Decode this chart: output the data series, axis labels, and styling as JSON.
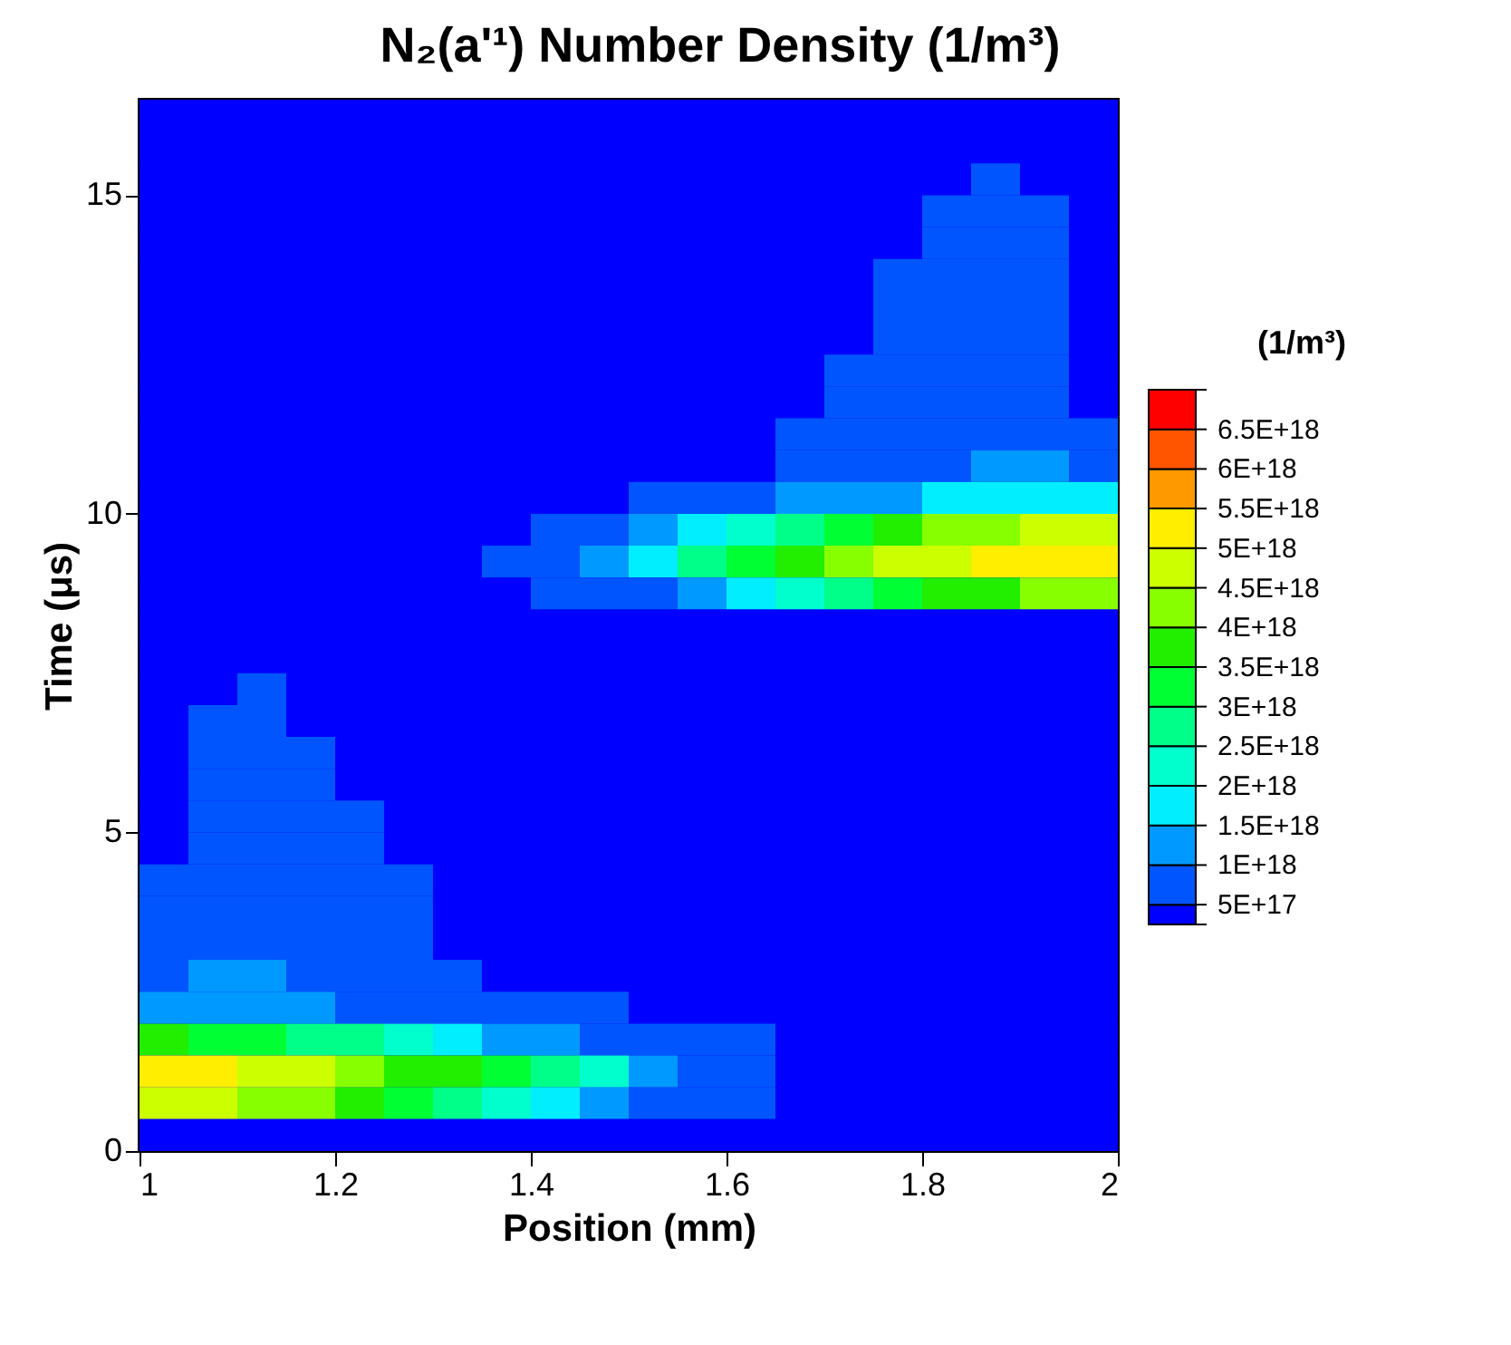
{
  "chart_data": {
    "type": "heatmap",
    "title": "N₂(a'¹) Number Density (1/m³)",
    "xlabel": "Position (mm)",
    "ylabel": "Time (μs)",
    "clabel": "(1/m³)",
    "x": [
      1.025,
      1.075,
      1.125,
      1.175,
      1.225,
      1.275,
      1.325,
      1.375,
      1.425,
      1.475,
      1.525,
      1.575,
      1.625,
      1.675,
      1.725,
      1.775,
      1.825,
      1.875,
      1.925,
      1.975
    ],
    "y": [
      16.25,
      15.75,
      15.25,
      14.75,
      14.25,
      13.75,
      13.25,
      12.75,
      12.25,
      11.75,
      11.25,
      10.75,
      10.25,
      9.75,
      9.25,
      8.75,
      8.25,
      7.75,
      7.25,
      6.75,
      6.25,
      5.75,
      5.25,
      4.75,
      4.25,
      3.75,
      3.25,
      2.75,
      2.25,
      1.75,
      1.25,
      0.75,
      0.25
    ],
    "cells": [
      [
        4e+17,
        4e+17,
        4e+17,
        4e+17,
        4e+17,
        4e+17,
        4e+17,
        4e+17,
        4e+17,
        4e+17,
        4e+17,
        4e+17,
        4e+17,
        4e+17,
        4e+17,
        4e+17,
        4e+17,
        4e+17,
        4e+17,
        4e+17
      ],
      [
        4e+17,
        4e+17,
        4e+17,
        4e+17,
        4e+17,
        4e+17,
        4e+17,
        4e+17,
        4e+17,
        4e+17,
        4e+17,
        4e+17,
        4e+17,
        4e+17,
        4e+17,
        4e+17,
        4e+17,
        4e+17,
        4e+17,
        4e+17
      ],
      [
        4e+17,
        4e+17,
        4e+17,
        4e+17,
        4e+17,
        4e+17,
        4e+17,
        4e+17,
        4e+17,
        4e+17,
        4e+17,
        4e+17,
        4e+17,
        4e+17,
        4e+17,
        4e+17,
        4e+17,
        7.5e+17,
        4e+17,
        4e+17
      ],
      [
        4e+17,
        4e+17,
        4e+17,
        4e+17,
        4e+17,
        4e+17,
        4e+17,
        4e+17,
        4e+17,
        4e+17,
        4e+17,
        4e+17,
        4e+17,
        4e+17,
        4e+17,
        4e+17,
        7.5e+17,
        7.5e+17,
        7.5e+17,
        4e+17
      ],
      [
        4e+17,
        4e+17,
        4e+17,
        4e+17,
        4e+17,
        4e+17,
        4e+17,
        4e+17,
        4e+17,
        4e+17,
        4e+17,
        4e+17,
        4e+17,
        4e+17,
        4e+17,
        4e+17,
        7.5e+17,
        7.5e+17,
        7.5e+17,
        4e+17
      ],
      [
        4e+17,
        4e+17,
        4e+17,
        4e+17,
        4e+17,
        4e+17,
        4e+17,
        4e+17,
        4e+17,
        4e+17,
        4e+17,
        4e+17,
        4e+17,
        4e+17,
        4e+17,
        7.5e+17,
        7.5e+17,
        7.5e+17,
        7.5e+17,
        4e+17
      ],
      [
        4e+17,
        4e+17,
        4e+17,
        4e+17,
        4e+17,
        4e+17,
        4e+17,
        4e+17,
        4e+17,
        4e+17,
        4e+17,
        4e+17,
        4e+17,
        4e+17,
        4e+17,
        7.5e+17,
        7.5e+17,
        7.5e+17,
        7.5e+17,
        4e+17
      ],
      [
        4e+17,
        4e+17,
        4e+17,
        4e+17,
        4e+17,
        4e+17,
        4e+17,
        4e+17,
        4e+17,
        4e+17,
        4e+17,
        4e+17,
        4e+17,
        4e+17,
        4e+17,
        7.5e+17,
        7.5e+17,
        7.5e+17,
        7.5e+17,
        4e+17
      ],
      [
        4e+17,
        4e+17,
        4e+17,
        4e+17,
        4e+17,
        4e+17,
        4e+17,
        4e+17,
        4e+17,
        4e+17,
        4e+17,
        4e+17,
        4e+17,
        4e+17,
        7.5e+17,
        7.5e+17,
        7.5e+17,
        7.5e+17,
        7.5e+17,
        4e+17
      ],
      [
        4e+17,
        4e+17,
        4e+17,
        4e+17,
        4e+17,
        4e+17,
        4e+17,
        4e+17,
        4e+17,
        4e+17,
        4e+17,
        4e+17,
        4e+17,
        4e+17,
        7.5e+17,
        7.5e+17,
        7.5e+17,
        7.5e+17,
        7.5e+17,
        4e+17
      ],
      [
        4e+17,
        4e+17,
        4e+17,
        4e+17,
        4e+17,
        4e+17,
        4e+17,
        4e+17,
        4e+17,
        4e+17,
        4e+17,
        4e+17,
        4e+17,
        7.5e+17,
        7.5e+17,
        7.5e+17,
        7.5e+17,
        7.5e+17,
        7.5e+17,
        7.5e+17
      ],
      [
        4e+17,
        4e+17,
        4e+17,
        4e+17,
        4e+17,
        4e+17,
        4e+17,
        4e+17,
        4e+17,
        4e+17,
        4e+17,
        4e+17,
        4e+17,
        7.5e+17,
        7.5e+17,
        7.5e+17,
        7.5e+17,
        1.25e+18,
        1.25e+18,
        7.5e+17
      ],
      [
        4e+17,
        4e+17,
        4e+17,
        4e+17,
        4e+17,
        4e+17,
        4e+17,
        4e+17,
        4e+17,
        4e+17,
        7.5e+17,
        7.5e+17,
        7.5e+17,
        1.25e+18,
        1.25e+18,
        1.25e+18,
        1.75e+18,
        1.75e+18,
        1.75e+18,
        1.75e+18
      ],
      [
        4e+17,
        4e+17,
        4e+17,
        4e+17,
        4e+17,
        4e+17,
        4e+17,
        4e+17,
        7.5e+17,
        7.5e+17,
        1.25e+18,
        1.75e+18,
        2.25e+18,
        2.75e+18,
        3.25e+18,
        3.75e+18,
        4.25e+18,
        4.25e+18,
        4.75e+18,
        4.75e+18
      ],
      [
        4e+17,
        4e+17,
        4e+17,
        4e+17,
        4e+17,
        4e+17,
        4e+17,
        7.5e+17,
        7.5e+17,
        1.25e+18,
        1.75e+18,
        2.75e+18,
        3.25e+18,
        3.75e+18,
        4.25e+18,
        4.75e+18,
        4.75e+18,
        5.25e+18,
        5.25e+18,
        5.25e+18
      ],
      [
        4e+17,
        4e+17,
        4e+17,
        4e+17,
        4e+17,
        4e+17,
        4e+17,
        4e+17,
        7.5e+17,
        7.5e+17,
        7.5e+17,
        1.25e+18,
        1.75e+18,
        2.25e+18,
        2.75e+18,
        3.25e+18,
        3.75e+18,
        3.75e+18,
        4.25e+18,
        4.25e+18
      ],
      [
        4e+17,
        4e+17,
        4e+17,
        4e+17,
        4e+17,
        4e+17,
        4e+17,
        4e+17,
        4e+17,
        4e+17,
        4e+17,
        4e+17,
        4e+17,
        4e+17,
        4e+17,
        4e+17,
        4e+17,
        4e+17,
        4e+17,
        4e+17
      ],
      [
        4e+17,
        4e+17,
        4e+17,
        4e+17,
        4e+17,
        4e+17,
        4e+17,
        4e+17,
        4e+17,
        4e+17,
        4e+17,
        4e+17,
        4e+17,
        4e+17,
        4e+17,
        4e+17,
        4e+17,
        4e+17,
        4e+17,
        4e+17
      ],
      [
        4e+17,
        4e+17,
        7.5e+17,
        4e+17,
        4e+17,
        4e+17,
        4e+17,
        4e+17,
        4e+17,
        4e+17,
        4e+17,
        4e+17,
        4e+17,
        4e+17,
        4e+17,
        4e+17,
        4e+17,
        4e+17,
        4e+17,
        4e+17
      ],
      [
        4e+17,
        7.5e+17,
        7.5e+17,
        4e+17,
        4e+17,
        4e+17,
        4e+17,
        4e+17,
        4e+17,
        4e+17,
        4e+17,
        4e+17,
        4e+17,
        4e+17,
        4e+17,
        4e+17,
        4e+17,
        4e+17,
        4e+17,
        4e+17
      ],
      [
        4e+17,
        7.5e+17,
        7.5e+17,
        7.5e+17,
        4e+17,
        4e+17,
        4e+17,
        4e+17,
        4e+17,
        4e+17,
        4e+17,
        4e+17,
        4e+17,
        4e+17,
        4e+17,
        4e+17,
        4e+17,
        4e+17,
        4e+17,
        4e+17
      ],
      [
        4e+17,
        7.5e+17,
        7.5e+17,
        7.5e+17,
        4e+17,
        4e+17,
        4e+17,
        4e+17,
        4e+17,
        4e+17,
        4e+17,
        4e+17,
        4e+17,
        4e+17,
        4e+17,
        4e+17,
        4e+17,
        4e+17,
        4e+17,
        4e+17
      ],
      [
        4e+17,
        7.5e+17,
        7.5e+17,
        7.5e+17,
        7.5e+17,
        4e+17,
        4e+17,
        4e+17,
        4e+17,
        4e+17,
        4e+17,
        4e+17,
        4e+17,
        4e+17,
        4e+17,
        4e+17,
        4e+17,
        4e+17,
        4e+17,
        4e+17
      ],
      [
        4e+17,
        7.5e+17,
        7.5e+17,
        7.5e+17,
        7.5e+17,
        4e+17,
        4e+17,
        4e+17,
        4e+17,
        4e+17,
        4e+17,
        4e+17,
        4e+17,
        4e+17,
        4e+17,
        4e+17,
        4e+17,
        4e+17,
        4e+17,
        4e+17
      ],
      [
        7.5e+17,
        7.5e+17,
        7.5e+17,
        7.5e+17,
        7.5e+17,
        7.5e+17,
        4e+17,
        4e+17,
        4e+17,
        4e+17,
        4e+17,
        4e+17,
        4e+17,
        4e+17,
        4e+17,
        4e+17,
        4e+17,
        4e+17,
        4e+17,
        4e+17
      ],
      [
        7.5e+17,
        7.5e+17,
        7.5e+17,
        7.5e+17,
        7.5e+17,
        7.5e+17,
        4e+17,
        4e+17,
        4e+17,
        4e+17,
        4e+17,
        4e+17,
        4e+17,
        4e+17,
        4e+17,
        4e+17,
        4e+17,
        4e+17,
        4e+17,
        4e+17
      ],
      [
        7.5e+17,
        7.5e+17,
        7.5e+17,
        7.5e+17,
        7.5e+17,
        7.5e+17,
        4e+17,
        4e+17,
        4e+17,
        4e+17,
        4e+17,
        4e+17,
        4e+17,
        4e+17,
        4e+17,
        4e+17,
        4e+17,
        4e+17,
        4e+17,
        4e+17
      ],
      [
        7.5e+17,
        1.25e+18,
        1.25e+18,
        7.5e+17,
        7.5e+17,
        7.5e+17,
        7.5e+17,
        4e+17,
        4e+17,
        4e+17,
        4e+17,
        4e+17,
        4e+17,
        4e+17,
        4e+17,
        4e+17,
        4e+17,
        4e+17,
        4e+17,
        4e+17
      ],
      [
        1.25e+18,
        1.25e+18,
        1.25e+18,
        1.25e+18,
        7.5e+17,
        7.5e+17,
        7.5e+17,
        7.5e+17,
        7.5e+17,
        7.5e+17,
        4e+17,
        4e+17,
        4e+17,
        4e+17,
        4e+17,
        4e+17,
        4e+17,
        4e+17,
        4e+17,
        4e+17
      ],
      [
        3.75e+18,
        3.25e+18,
        3.25e+18,
        2.75e+18,
        2.75e+18,
        2.25e+18,
        1.75e+18,
        1.25e+18,
        1.25e+18,
        7.5e+17,
        7.5e+17,
        7.5e+17,
        7.5e+17,
        4e+17,
        4e+17,
        4e+17,
        4e+17,
        4e+17,
        4e+17,
        4e+17
      ],
      [
        5.25e+18,
        5.25e+18,
        4.75e+18,
        4.75e+18,
        4.25e+18,
        3.75e+18,
        3.75e+18,
        3.25e+18,
        2.75e+18,
        2.25e+18,
        1.25e+18,
        7.5e+17,
        7.5e+17,
        4e+17,
        4e+17,
        4e+17,
        4e+17,
        4e+17,
        4e+17,
        4e+17
      ],
      [
        4.75e+18,
        4.75e+18,
        4.25e+18,
        4.25e+18,
        3.75e+18,
        3.25e+18,
        2.75e+18,
        2.25e+18,
        1.75e+18,
        1.25e+18,
        7.5e+17,
        7.5e+17,
        7.5e+17,
        4e+17,
        4e+17,
        4e+17,
        4e+17,
        4e+17,
        4e+17,
        4e+17
      ],
      [
        4e+17,
        4e+17,
        4e+17,
        4e+17,
        4e+17,
        4e+17,
        4e+17,
        4e+17,
        4e+17,
        4e+17,
        4e+17,
        4e+17,
        4e+17,
        4e+17,
        4e+17,
        4e+17,
        4e+17,
        4e+17,
        4e+17,
        4e+17
      ]
    ],
    "colors": [
      "#0000ff",
      "#0055ff",
      "#0099ff",
      "#00eeff",
      "#00ffcc",
      "#00ff88",
      "#00ff33",
      "#22ee00",
      "#88ff00",
      "#ccff00",
      "#ffee00",
      "#ff9900",
      "#ff5500",
      "#ff0000"
    ],
    "cticks": [
      {
        "value": 2.5e+17,
        "label": null
      },
      {
        "value": 5e+17,
        "label": "5E+17"
      },
      {
        "value": 1e+18,
        "label": "1E+18"
      },
      {
        "value": 1.5e+18,
        "label": "1.5E+18"
      },
      {
        "value": 2e+18,
        "label": "2E+18"
      },
      {
        "value": 2.5e+18,
        "label": "2.5E+18"
      },
      {
        "value": 3e+18,
        "label": "3E+18"
      },
      {
        "value": 3.5e+18,
        "label": "3.5E+18"
      },
      {
        "value": 4e+18,
        "label": "4E+18"
      },
      {
        "value": 4.5e+18,
        "label": "4.5E+18"
      },
      {
        "value": 5e+18,
        "label": "5E+18"
      },
      {
        "value": 5.5e+18,
        "label": "5.5E+18"
      },
      {
        "value": 6e+18,
        "label": "6E+18"
      },
      {
        "value": 6.5e+18,
        "label": "6.5E+18"
      },
      {
        "value": 7e+18,
        "label": null
      }
    ],
    "xlim": [
      1,
      2
    ],
    "xticks": [
      1,
      1.2,
      1.4,
      1.6,
      1.8,
      2
    ],
    "ylim": [
      0,
      16.5
    ],
    "yticks": [
      0,
      5,
      10,
      15
    ]
  }
}
